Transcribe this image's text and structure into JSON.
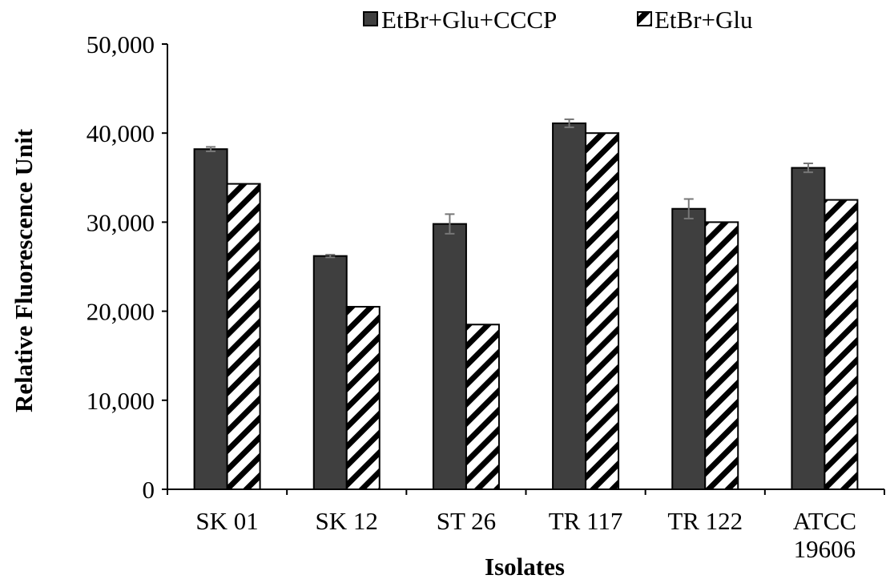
{
  "chart_data": {
    "type": "bar",
    "title": "",
    "xlabel": "Isolates",
    "ylabel": "Relative Fluorescence Unit",
    "categories": [
      [
        "SK 01"
      ],
      [
        "SK 12"
      ],
      [
        "ST 26"
      ],
      [
        "TR 117"
      ],
      [
        "TR 122"
      ],
      [
        "ATCC",
        "19606"
      ]
    ],
    "series": [
      {
        "name": "EtBr+Glu+CCCP",
        "values": [
          38200,
          26200,
          29800,
          41100,
          31500,
          36100
        ],
        "error": [
          250,
          150,
          1100,
          450,
          1100,
          500
        ],
        "color": "#3f3f3f",
        "pattern": "solid"
      },
      {
        "name": "EtBr+Glu",
        "values": [
          34300,
          20500,
          18500,
          40000,
          30000,
          32500
        ],
        "color": "#ffffff",
        "pattern": "diagonal-hatch"
      }
    ],
    "ylim": [
      0,
      50000
    ],
    "yticks": [
      0,
      10000,
      20000,
      30000,
      40000,
      50000
    ],
    "ytick_labels": [
      "0",
      "10,000",
      "20,000",
      "30,000",
      "40,000",
      "50,000"
    ],
    "grid": false,
    "legend_position": "top"
  }
}
